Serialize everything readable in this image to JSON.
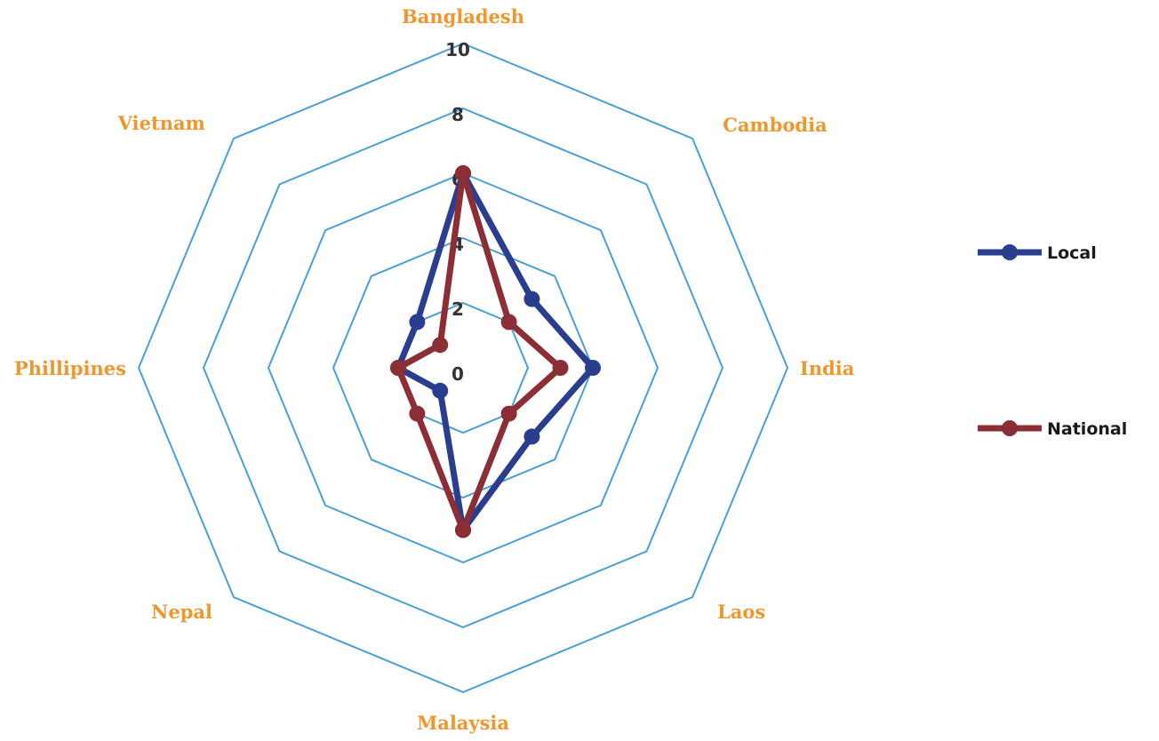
{
  "chart_data": {
    "type": "radar",
    "categories": [
      "Bangladesh",
      "Cambodia",
      "India",
      "Laos",
      "Malaysia",
      "Nepal",
      "Phillipines",
      "Vietnam"
    ],
    "series": [
      {
        "name": "Local",
        "values": [
          6,
          3,
          4,
          3,
          5,
          1,
          2,
          2
        ]
      },
      {
        "name": "National",
        "values": [
          6,
          2,
          3,
          2,
          5,
          2,
          2,
          1
        ]
      }
    ],
    "radial_axis": {
      "min": 0,
      "max": 10,
      "step": 2,
      "ticks": [
        "0",
        "2",
        "4",
        "6",
        "8",
        "10"
      ]
    },
    "legend_position": "right",
    "colors": {
      "grid": "#4a9fd4",
      "category_labels": "#f0962f",
      "Local": "#2b3d8f",
      "National": "#8b2e35"
    }
  }
}
